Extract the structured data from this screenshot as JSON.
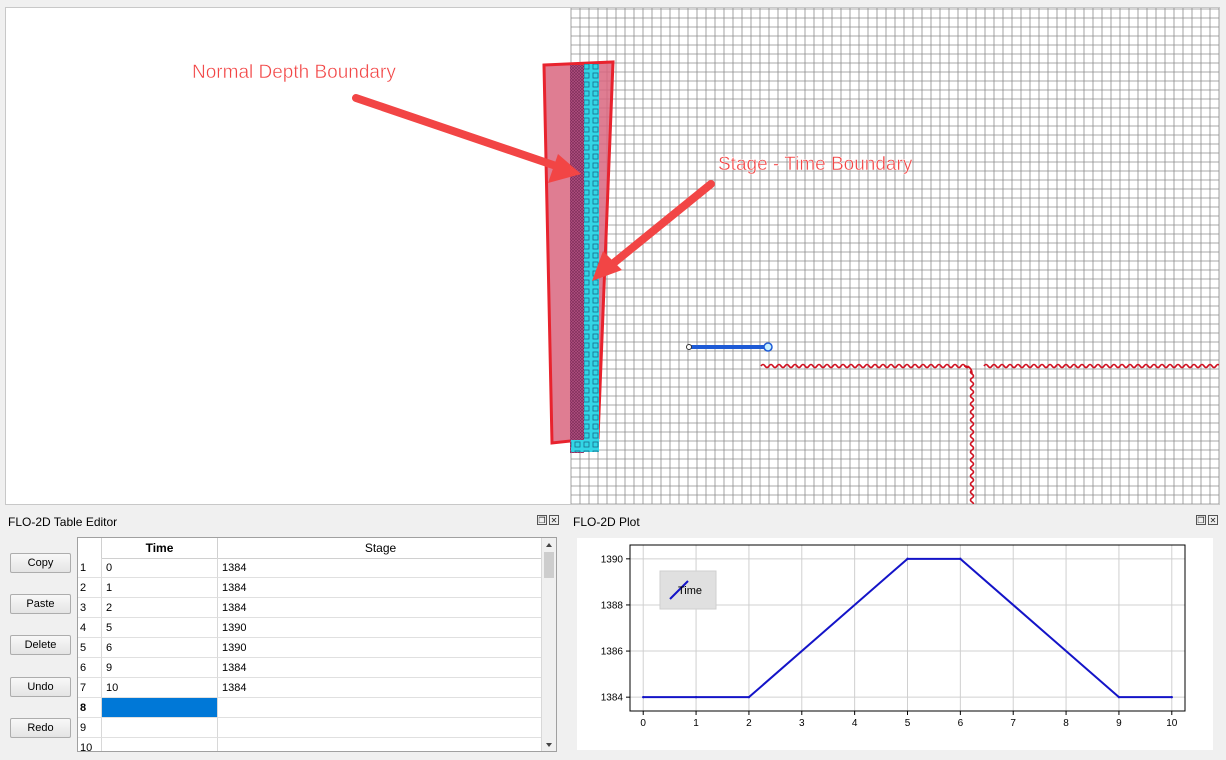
{
  "map": {
    "annotations": [
      {
        "text": "Normal Depth Boundary"
      },
      {
        "text": "Stage - Time Boundary"
      }
    ],
    "colors": {
      "grid": "#8c8c8c",
      "arrow": "#f24545",
      "boundary_fill": "#d9667f",
      "boundary_stroke": "#e8232e",
      "cells": "#33d6e6",
      "levee": "#d01020",
      "structure": "#1e5bd6"
    }
  },
  "table_editor": {
    "title": "FLO-2D Table Editor",
    "buttons": [
      "Copy",
      "Paste",
      "Delete",
      "Undo",
      "Redo"
    ],
    "columns": [
      "Time",
      "Stage"
    ],
    "rows": [
      {
        "n": "1",
        "time": "0",
        "stage": "1384"
      },
      {
        "n": "2",
        "time": "1",
        "stage": "1384"
      },
      {
        "n": "3",
        "time": "2",
        "stage": "1384"
      },
      {
        "n": "4",
        "time": "5",
        "stage": "1390"
      },
      {
        "n": "5",
        "time": "6",
        "stage": "1390"
      },
      {
        "n": "6",
        "time": "9",
        "stage": "1384"
      },
      {
        "n": "7",
        "time": "10",
        "stage": "1384"
      },
      {
        "n": "8",
        "time": "",
        "stage": ""
      },
      {
        "n": "9",
        "time": "",
        "stage": ""
      },
      {
        "n": "10",
        "time": "",
        "stage": ""
      }
    ],
    "selected_row": "8"
  },
  "plot_panel": {
    "title": "FLO-2D Plot"
  },
  "chart_data": {
    "type": "line",
    "series": [
      {
        "name": "Time",
        "x": [
          0,
          1,
          2,
          5,
          6,
          9,
          10
        ],
        "y": [
          1384,
          1384,
          1384,
          1390,
          1390,
          1384,
          1384
        ],
        "color": "#1414c8"
      }
    ],
    "xlim": [
      -0.25,
      10.25
    ],
    "ylim": [
      1383.4,
      1390.6
    ],
    "xticks": [
      "0",
      "1",
      "2",
      "3",
      "4",
      "5",
      "6",
      "7",
      "8",
      "9",
      "10"
    ],
    "yticks": [
      "1384",
      "1386",
      "1388",
      "1390"
    ],
    "grid": true,
    "legend": "top-left"
  }
}
